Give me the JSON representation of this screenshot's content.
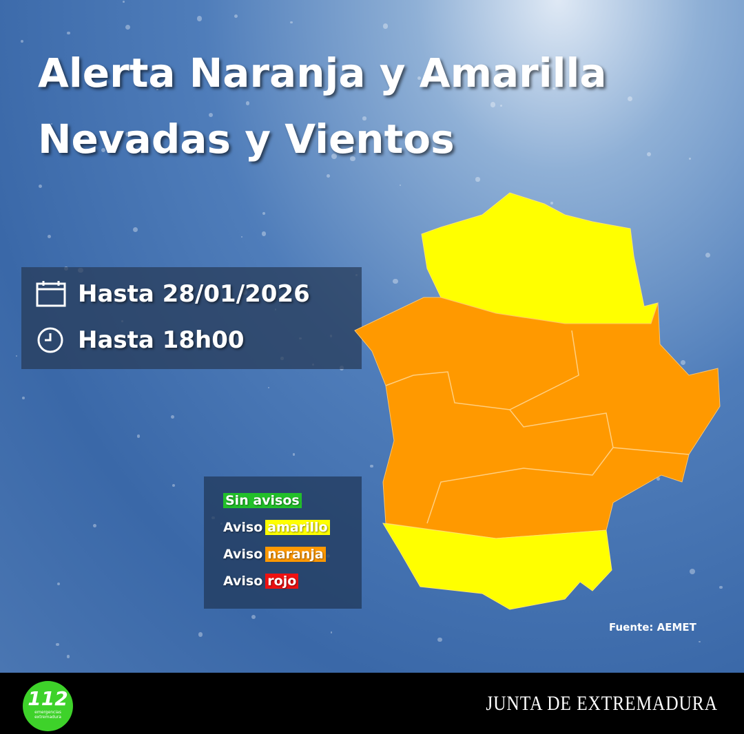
{
  "title": {
    "line1": "Alerta Naranja y Amarilla",
    "line2": "Nevadas y Vientos"
  },
  "info": {
    "date": "Hasta 28/01/2026",
    "time": "Hasta 18h00",
    "date_icon": "calendar-icon",
    "time_icon": "clock-icon"
  },
  "legend": {
    "none": "Sin avisos",
    "prefix": "Aviso",
    "yellow": "amarillo",
    "orange": "naranja",
    "red": "rojo"
  },
  "colors": {
    "none": "#22c02a",
    "yellow": "#ffff00",
    "orange": "#ff9900",
    "red": "#ee1111"
  },
  "map": {
    "north": "amarillo",
    "center": "naranja",
    "south": "amarillo"
  },
  "source": "Fuente: AEMET",
  "footer": {
    "logo_number": "112",
    "logo_line1": "emergencias",
    "logo_line2": "extremadura",
    "org": "JUNTA DE EXTREMADURA"
  }
}
